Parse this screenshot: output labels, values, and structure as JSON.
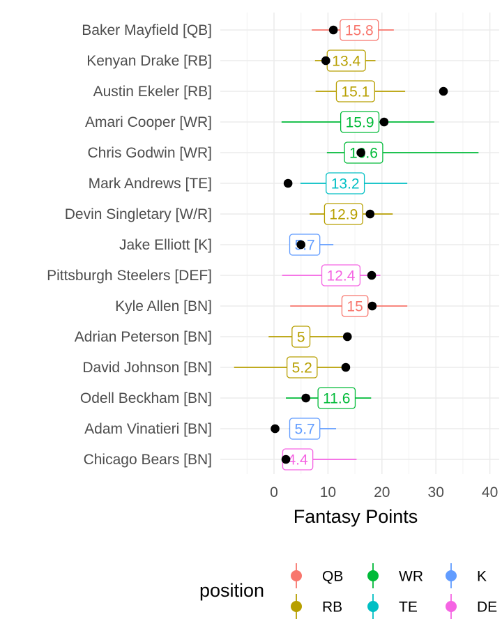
{
  "chart_data": {
    "type": "scatter",
    "title": "",
    "xlabel": "Fantasy Points",
    "ylabel": "",
    "xlim": [
      -5,
      41
    ],
    "xticks": [
      0,
      10,
      20,
      30,
      40
    ],
    "grid": true,
    "legend": {
      "title": "position",
      "placement": "bottom",
      "entries": [
        {
          "name": "QB",
          "color": "#F8766D"
        },
        {
          "name": "WR",
          "color": "#00BA38"
        },
        {
          "name": "K",
          "color": "#619CFF"
        },
        {
          "name": "RB",
          "color": "#B79F00"
        },
        {
          "name": "TE",
          "color": "#00BFC4"
        },
        {
          "name": "DE",
          "color": "#F564E3"
        }
      ]
    },
    "players": [
      {
        "name": "Baker Mayfield [QB]",
        "position": "QB",
        "projection": 15.8,
        "projection_label": "15.8",
        "low": 7.0,
        "high": 22.2,
        "actual": 11.0
      },
      {
        "name": "Kenyan Drake [RB]",
        "position": "RB",
        "projection": 13.4,
        "projection_label": "13.4",
        "low": 7.6,
        "high": 18.8,
        "actual": 9.6
      },
      {
        "name": "Austin Ekeler [RB]",
        "position": "RB",
        "projection": 15.1,
        "projection_label": "15.1",
        "low": 7.7,
        "high": 24.3,
        "actual": 31.4
      },
      {
        "name": "Amari Cooper [WR]",
        "position": "WR",
        "projection": 15.9,
        "projection_label": "15.9",
        "low": 1.4,
        "high": 29.7,
        "actual": 20.4
      },
      {
        "name": "Chris Godwin [WR]",
        "position": "WR",
        "projection": 16.6,
        "projection_label": "16.6",
        "low": 9.8,
        "high": 37.9,
        "actual": 16.1
      },
      {
        "name": "Mark Andrews [TE]",
        "position": "TE",
        "projection": 13.2,
        "projection_label": "13.2",
        "low": 4.9,
        "high": 24.7,
        "actual": 2.6
      },
      {
        "name": "Devin Singletary [W/R]",
        "position": "RB",
        "projection": 12.9,
        "projection_label": "12.9",
        "low": 6.6,
        "high": 22.0,
        "actual": 17.8
      },
      {
        "name": "Jake Elliott [K]",
        "position": "K",
        "projection": 5.7,
        "projection_label": "5.7",
        "low": 4.2,
        "high": 11.0,
        "actual": 5.0
      },
      {
        "name": "Pittsburgh Steelers [DEF]",
        "position": "DE",
        "projection": 12.4,
        "projection_label": "12.4",
        "low": 1.5,
        "high": 19.7,
        "actual": 18.1
      },
      {
        "name": "Kyle Allen [BN]",
        "position": "QB",
        "projection": 15.0,
        "projection_label": "15",
        "low": 3.0,
        "high": 24.7,
        "actual": 18.2
      },
      {
        "name": "Adrian Peterson [BN]",
        "position": "RB",
        "projection": 5.0,
        "projection_label": "5",
        "low": -1.0,
        "high": 14.0,
        "actual": 13.6
      },
      {
        "name": "David Johnson [BN]",
        "position": "RB",
        "projection": 5.2,
        "projection_label": "5.2",
        "low": -7.4,
        "high": 13.0,
        "actual": 13.3
      },
      {
        "name": "Odell Beckham [BN]",
        "position": "WR",
        "projection": 11.6,
        "projection_label": "11.6",
        "low": 2.2,
        "high": 18.0,
        "actual": 5.9
      },
      {
        "name": "Adam Vinatieri [BN]",
        "position": "K",
        "projection": 5.7,
        "projection_label": "5.7",
        "low": 2.8,
        "high": 11.5,
        "actual": 0.2
      },
      {
        "name": "Chicago Bears [BN]",
        "position": "DE",
        "projection": 4.4,
        "projection_label": "4.4",
        "low": 1.5,
        "high": 15.3,
        "actual": 2.2
      }
    ]
  }
}
